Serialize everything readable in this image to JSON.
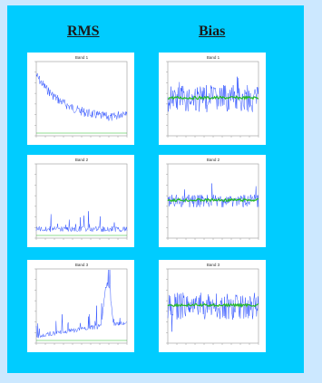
{
  "headers": {
    "rms": "RMS",
    "bias": "Bias"
  },
  "plots": [
    {
      "column": "rms",
      "band": 1,
      "title": "Band 1",
      "shape": "decay"
    },
    {
      "column": "bias",
      "band": 1,
      "title": "Band 1",
      "shape": "noisy-bias"
    },
    {
      "column": "rms",
      "band": 2,
      "title": "Band 2",
      "shape": "flat-low"
    },
    {
      "column": "bias",
      "band": 2,
      "title": "Band 2",
      "shape": "tight-bias"
    },
    {
      "column": "rms",
      "band": 3,
      "title": "Band 3",
      "shape": "rising-spikes"
    },
    {
      "column": "bias",
      "band": 3,
      "title": "Band 3",
      "shape": "noisy-bias-2"
    }
  ],
  "colors": {
    "panel": "#00ccff",
    "page": "#cce8ff",
    "series": "#3355ff",
    "reference": "#22bb22"
  }
}
